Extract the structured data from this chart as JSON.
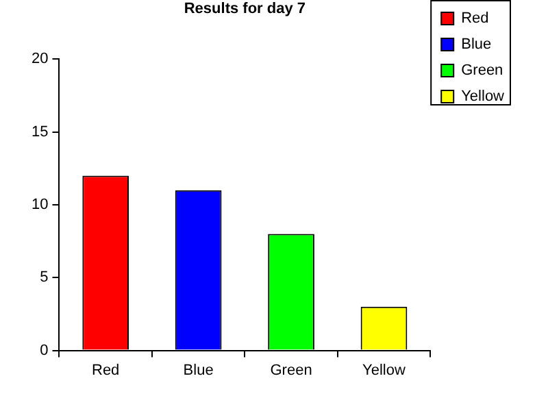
{
  "chart_data": {
    "type": "bar",
    "title": "Results for day 7",
    "categories": [
      "Red",
      "Blue",
      "Green",
      "Yellow"
    ],
    "series": [
      {
        "name": "Red",
        "color": "#ff0000",
        "values": [
          12,
          null,
          null,
          null
        ]
      },
      {
        "name": "Blue",
        "color": "#0000ff",
        "values": [
          null,
          11,
          null,
          null
        ]
      },
      {
        "name": "Green",
        "color": "#00ff00",
        "values": [
          null,
          null,
          8,
          null
        ]
      },
      {
        "name": "Yellow",
        "color": "#ffff00",
        "values": [
          null,
          null,
          null,
          3
        ]
      }
    ],
    "ylim": [
      0,
      20
    ],
    "yticks": [
      0,
      5,
      10,
      15,
      20
    ],
    "grid": false,
    "legend": "top right"
  }
}
